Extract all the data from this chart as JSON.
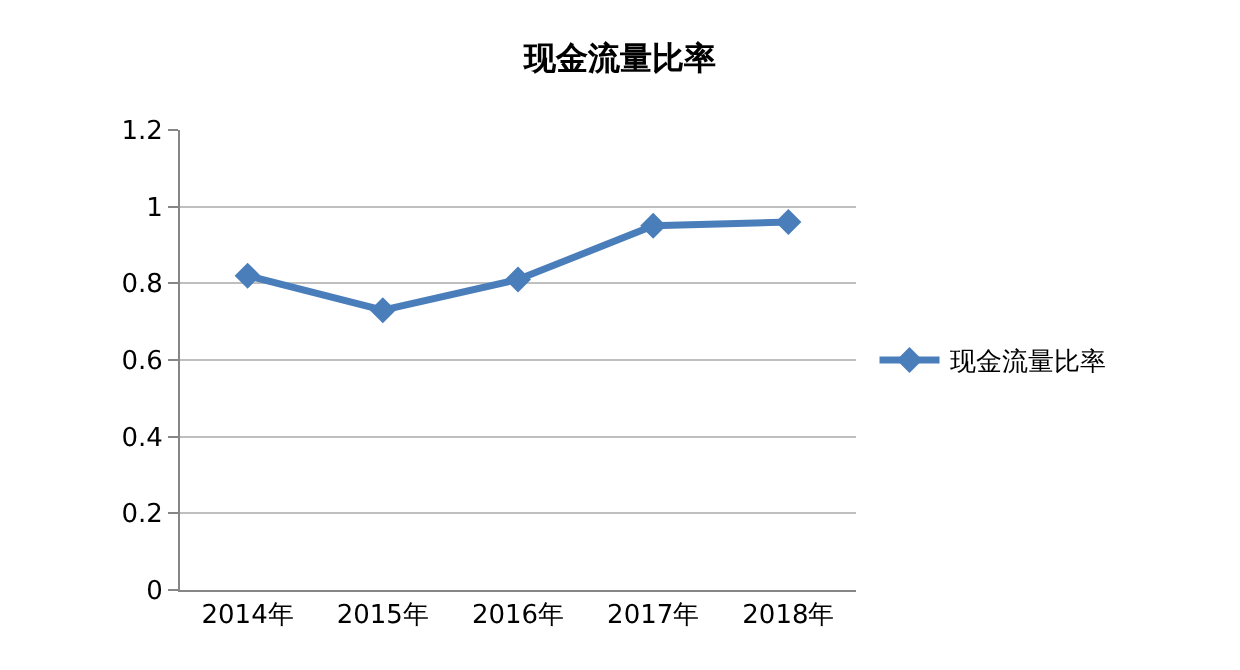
{
  "chart_data": {
    "type": "line",
    "title": "现金流量比率",
    "categories": [
      "2014年",
      "2015年",
      "2016年",
      "2017年",
      "2018年"
    ],
    "series": [
      {
        "name": "现金流量比率",
        "color": "#4a7ebb",
        "values": [
          0.82,
          0.73,
          0.81,
          0.95,
          0.96
        ]
      }
    ],
    "ylim": [
      0,
      1.2
    ],
    "yticks": [
      0,
      0.2,
      0.4,
      0.6,
      0.8,
      1,
      1.2
    ],
    "grid": "y",
    "legend": "right",
    "marker": "diamond",
    "line_style": "solid"
  }
}
